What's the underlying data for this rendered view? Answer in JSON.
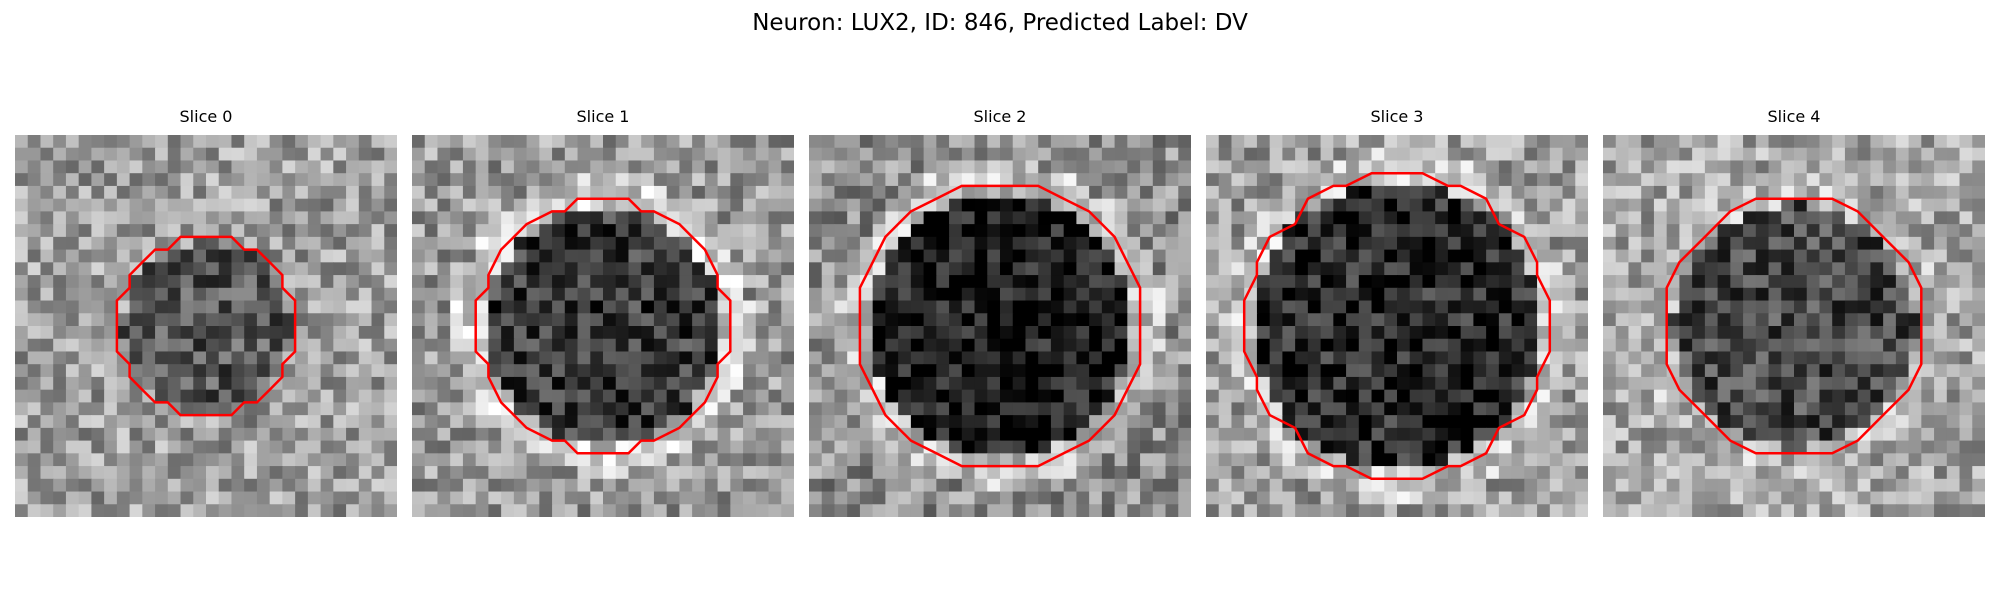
{
  "title": "Neuron: LUX2, ID: 846, Predicted Label: DV",
  "contour_color": "#ff0000",
  "colormap": "gray",
  "slices": [
    {
      "label": "Slice 0",
      "grid": 30,
      "radius": 0.24,
      "inner_level": 0.34,
      "outer_level": 0.62,
      "ring_level": 0.6
    },
    {
      "label": "Slice 1",
      "grid": 30,
      "radius": 0.33,
      "inner_level": 0.22,
      "outer_level": 0.6,
      "ring_level": 0.8
    },
    {
      "label": "Slice 2",
      "grid": 30,
      "radius": 0.37,
      "inner_level": 0.1,
      "outer_level": 0.55,
      "ring_level": 0.75
    },
    {
      "label": "Slice 3",
      "grid": 30,
      "radius": 0.4,
      "inner_level": 0.16,
      "outer_level": 0.62,
      "ring_level": 0.75
    },
    {
      "label": "Slice 4",
      "grid": 30,
      "radius": 0.34,
      "inner_level": 0.28,
      "outer_level": 0.65,
      "ring_level": 0.72
    }
  ]
}
